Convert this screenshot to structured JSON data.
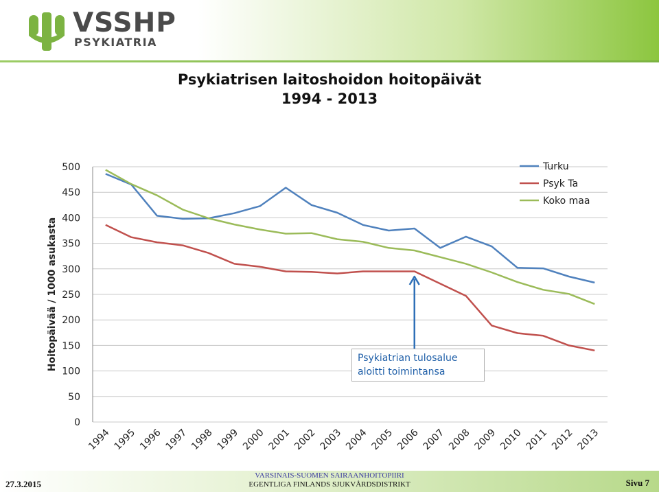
{
  "logo": {
    "name": "VSSHP",
    "sub": "PSYKIATRIA",
    "colors": {
      "green": "#7cb342",
      "text": "#4a4a4a"
    }
  },
  "slide": {
    "title_line1": "Psykiatrisen laitoshoidon hoitopäivät",
    "title_line2": "1994 - 2013"
  },
  "annotation": {
    "line1": "Psykiatrian tulosalue",
    "line2": "aloitti toimintansa",
    "x_category": "2006"
  },
  "footer": {
    "date": "27.3.2015",
    "org_line1": "VARSINAIS-SUOMEN SAIRAANHOITOPIIRI",
    "org_line2": "EGENTLIGA FINLANDS SJUKVÅRDSDISTRIKT",
    "page": "Sivu 7"
  },
  "chart_data": {
    "type": "line",
    "title": "Psykiatrisen laitoshoidon hoitopäivät 1994 - 2013",
    "xlabel": "",
    "ylabel": "Hoitopäivää / 1000 asukasta",
    "categories": [
      "1994",
      "1995",
      "1996",
      "1997",
      "1998",
      "1999",
      "2000",
      "2001",
      "2002",
      "2003",
      "2004",
      "2005",
      "2006",
      "2007",
      "2008",
      "2009",
      "2010",
      "2011",
      "2012",
      "2013"
    ],
    "ylim": [
      0,
      500
    ],
    "yticks": [
      0,
      50,
      100,
      150,
      200,
      250,
      300,
      350,
      400,
      450,
      500
    ],
    "grid": true,
    "legend_position": "top-right",
    "series": [
      {
        "name": "Turku",
        "color": "#4f81bd",
        "values": [
          486,
          465,
          404,
          398,
          399,
          409,
          423,
          459,
          425,
          410,
          386,
          375,
          379,
          341,
          363,
          344,
          302,
          301,
          285,
          273
        ]
      },
      {
        "name": "Psyk Ta",
        "color": "#c0504d",
        "values": [
          386,
          362,
          352,
          346,
          331,
          310,
          304,
          295,
          294,
          291,
          295,
          295,
          295,
          271,
          247,
          189,
          174,
          169,
          150,
          140
        ]
      },
      {
        "name": "Koko maa",
        "color": "#9bbb59",
        "values": [
          494,
          466,
          444,
          416,
          399,
          387,
          377,
          369,
          370,
          358,
          353,
          341,
          336,
          323,
          310,
          293,
          274,
          259,
          251,
          231
        ]
      }
    ]
  }
}
